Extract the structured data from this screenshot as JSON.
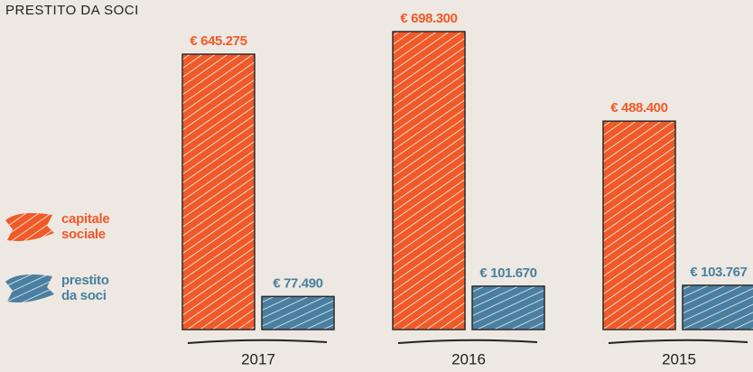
{
  "chart_data": {
    "type": "bar",
    "title": "PRESTITO DA SOCI",
    "categories": [
      "2017",
      "2016",
      "2015"
    ],
    "series": [
      {
        "name": "capitale sociale",
        "color": "#f05a28",
        "values": [
          645275,
          698300,
          488400
        ],
        "value_labels": [
          "€ 645.275",
          "€ 698.300",
          "€ 488.400"
        ]
      },
      {
        "name": "prestito da soci",
        "color": "#4a7fa0",
        "values": [
          77490,
          101670,
          103767
        ],
        "value_labels": [
          "€ 77.490",
          "€ 101.670",
          "€ 103.767"
        ]
      }
    ],
    "legend": "left"
  }
}
